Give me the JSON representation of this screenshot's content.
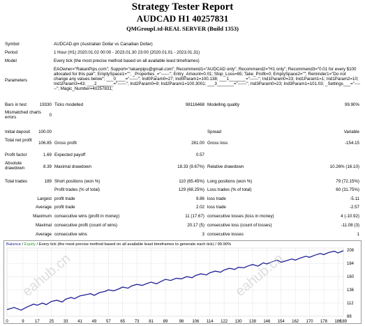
{
  "header": {
    "title": "Strategy Tester Report",
    "subtitle": "AUDCAD H1 40257831",
    "server": "QMGroupLtd-REAL SERVER (Build 1353)"
  },
  "info": {
    "symbol_label": "Symbol",
    "symbol_value": "AUDCAD.qm (Australian Dollar vs Canadian Dollar)",
    "period_label": "Period",
    "period_value": "1 Hour (H1) 2020.01.02 00:00 - 2023.01.30 23:00 (2020.01.01 - 2023.01.31)",
    "model_label": "Model",
    "model_value": "Every tick (the most precise method based on all available least timeframes)",
    "params_label": "Parameters",
    "params_value": "EAOwner=\"RakanPips.com\"; Support=\"rakanpips@gmail.com\"; Recommend1=\"AUDCAD only\"; Recommend2=\"H1 only\"; Recommend3=\"0.01 for every $100 allocated for this pair\"; EmptySpace1=\"\"; _Properties_=\"------\"; Entry_Amount=0.01; Stop_Loss=65; Take_Profit=0; EmptySpace2=\"\"; Reminder1=\"Do not change any values below\"; ___0____=\"------\"; Ind0Param0=27; Ind0Param1=100.138; ___1_______=\"------\"; Ind1Param0=23; Ind1Param1=1; Ind1Param2=10; Ind1Param3=43; ___2_______=\"------\"; Ind2Param0=9; Ind2Param1=100.3001; ___3_______=\"------\"; Ind3Param0=23; Ind3Param1=101.03; _Settings___=\"------\"; Magic_Number=40257831;"
  },
  "stats": {
    "bars_label": "Bars in test",
    "bars_value": "19330",
    "ticks_label": "Ticks modelled",
    "ticks_value": "98116468",
    "quality_label": "Modelling quality",
    "quality_value": "99.90%",
    "mismatch_label": "Mismatched charts errors",
    "mismatch_value": "0",
    "deposit_label": "Initial deposit",
    "deposit_value": "100.00",
    "spread_label": "Spread",
    "spread_value": "Variable",
    "netprofit_label": "Total net profit",
    "netprofit_value": "106.85",
    "grossprofit_label": "Gross profit",
    "grossprofit_value": "261.00",
    "grossloss_label": "Gross loss",
    "grossloss_value": "-154.15",
    "pf_label": "Profit factor",
    "pf_value": "1.69",
    "ep_label": "Expected payoff",
    "ep_value": "0.57",
    "absdd_label": "Absolute drawdown",
    "absdd_value": "8.39",
    "maxdd_label": "Maximal drawdown",
    "maxdd_value": "18.33 (9.67%)",
    "reldd_label": "Relative drawdown",
    "reldd_value": "10.26% (16.10)",
    "trades_label": "Total trades",
    "trades_value": "189",
    "short_label": "Short positions (won %)",
    "short_value": "110 (65.45%)",
    "long_label": "Long positions (won %)",
    "long_value": "79 (72.15%)",
    "profit_trades_label": "Profit trades (% of total)",
    "profit_trades_value": "129 (68.25%)",
    "loss_trades_label": "Loss trades (% of total)",
    "loss_trades_value": "60 (31.75%)",
    "largest_label": "Largest",
    "largest_pt_label": "profit trade",
    "largest_pt_value": "9.86",
    "largest_lt_label": "loss trade",
    "largest_lt_value": "-5.11",
    "average_label": "Average",
    "average_pt_label": "profit trade",
    "average_pt_value": "2.02",
    "average_lt_label": "loss trade",
    "average_lt_value": "-2.57",
    "maximum_label": "Maximum",
    "max_cw_label": "consecutive wins (profit in money)",
    "max_cw_value": "11 (17.67)",
    "max_cl_label": "consecutive losses (loss in money)",
    "max_cl_value": "4 (-10.92)",
    "maximal_label": "Maximal",
    "mxl_cw_label": "consecutive profit (count of wins)",
    "mxl_cw_value": "20.17 (5)",
    "mxl_cl_label": "consecutive loss (count of losses)",
    "mxl_cl_value": "-11.08 (3)",
    "avg2_label": "Average",
    "avg_cw_label": "consecutive wins",
    "avg_cw_value": "3",
    "avg_cl_label": "consecutive losses",
    "avg_cl_value": "1"
  },
  "chart": {
    "legend_balance": "Balance",
    "legend_sep1": " / ",
    "legend_equity": "Equity",
    "legend_rest": " / Every tick (the most precise method based on all available least timeframes to generate each tick) / 99.90%",
    "watermark": "eahub.cn"
  },
  "chart_data": {
    "type": "line",
    "title": "Balance / Equity / Every tick (the most precise method based on all available least timeframes to generate each tick) / 99.90%",
    "x_ticks": [
      0,
      9,
      17,
      25,
      33,
      41,
      49,
      57,
      65,
      73,
      81,
      89,
      98,
      106,
      114,
      122,
      130,
      138,
      146,
      154,
      162,
      170,
      178,
      186,
      189
    ],
    "y_ticks": [
      88,
      112,
      136,
      160,
      184,
      208
    ],
    "ylim": [
      88,
      212
    ],
    "xlim": [
      0,
      189
    ],
    "series": [
      {
        "name": "Balance",
        "color": "#1e1e96",
        "x": [
          0,
          4,
          8,
          9,
          12,
          15,
          17,
          20,
          22,
          25,
          28,
          31,
          33,
          36,
          38,
          41,
          44,
          47,
          49,
          52,
          55,
          57,
          60,
          63,
          65,
          68,
          70,
          73,
          76,
          79,
          81,
          84,
          87,
          89,
          92,
          95,
          98,
          101,
          104,
          106,
          109,
          112,
          114,
          117,
          120,
          122,
          125,
          128,
          130,
          133,
          136,
          138,
          141,
          144,
          146,
          149,
          152,
          154,
          157,
          160,
          162,
          165,
          168,
          170,
          173,
          176,
          178,
          181,
          184,
          186,
          189
        ],
        "y": [
          100,
          104,
          99,
          101,
          106,
          110,
          108,
          112,
          109,
          115,
          117,
          114,
          119,
          122,
          120,
          125,
          127,
          129,
          126,
          131,
          133,
          136,
          134,
          138,
          141,
          139,
          143,
          146,
          144,
          148,
          150,
          147,
          152,
          155,
          153,
          157,
          156,
          160,
          158,
          162,
          165,
          163,
          167,
          170,
          168,
          172,
          175,
          173,
          177,
          176,
          180,
          182,
          179,
          185,
          183,
          187,
          190,
          186,
          189,
          192,
          190,
          194,
          197,
          195,
          199,
          202,
          200,
          204,
          206,
          203,
          207
        ]
      }
    ]
  }
}
